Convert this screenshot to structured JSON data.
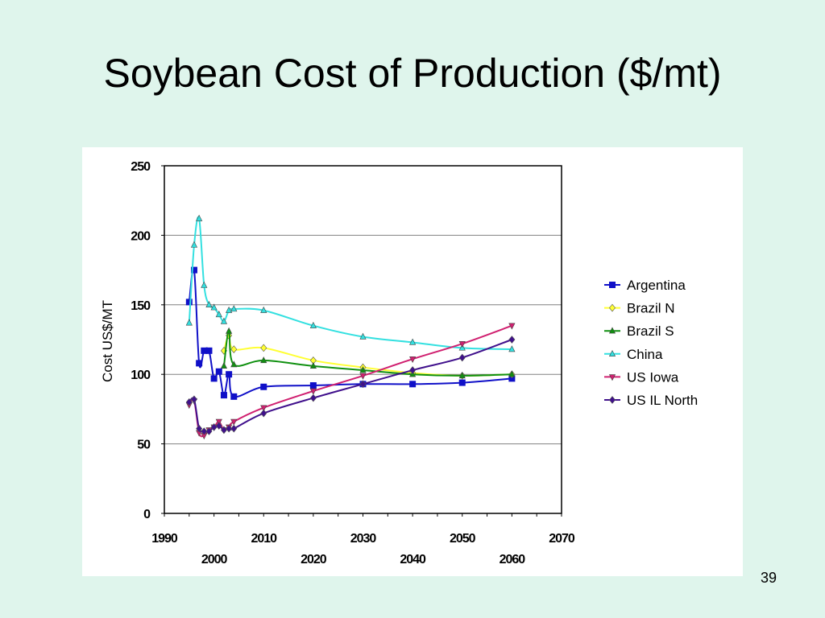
{
  "slide": {
    "title": "Soybean Cost of Production ($/mt)",
    "page_number": "39"
  },
  "chart_data": {
    "type": "line",
    "title": "",
    "xlabel": "",
    "ylabel": "Cost US$/MT",
    "xlim": [
      1990,
      2070
    ],
    "ylim": [
      0,
      250
    ],
    "x_ticks_upper": [
      1990,
      2010,
      2030,
      2050,
      2070
    ],
    "x_ticks_lower": [
      2000,
      2020,
      2040,
      2060
    ],
    "y_ticks": [
      0,
      50,
      100,
      150,
      200,
      250
    ],
    "grid": "horizontal",
    "legend_position": "right",
    "series": [
      {
        "name": "Argentina",
        "color": "#1010c8",
        "marker": "square",
        "x": [
          1995,
          1996,
          1997,
          1998,
          1999,
          2000,
          2001,
          2002,
          2003,
          2004,
          2010,
          2020,
          2030,
          2040,
          2050,
          2060
        ],
        "y": [
          152,
          175,
          108,
          117,
          117,
          97,
          102,
          85,
          100,
          84,
          91,
          92,
          93,
          93,
          94,
          97
        ]
      },
      {
        "name": "Brazil N",
        "color": "#ffff33",
        "marker": "diamond",
        "x": [
          2002,
          2003,
          2004,
          2010,
          2020,
          2030,
          2040,
          2050,
          2060
        ],
        "y": [
          117,
          128,
          118,
          119,
          110,
          105,
          101,
          99,
          100
        ]
      },
      {
        "name": "Brazil S",
        "color": "#109010",
        "marker": "triangle",
        "x": [
          2002,
          2003,
          2004,
          2010,
          2020,
          2030,
          2040,
          2050,
          2060
        ],
        "y": [
          106,
          131,
          107,
          110,
          106,
          103,
          100,
          99,
          100
        ]
      },
      {
        "name": "China",
        "color": "#33e0e0",
        "marker": "triangle",
        "x": [
          1995,
          1996,
          1997,
          1998,
          1999,
          2000,
          2001,
          2002,
          2003,
          2004,
          2010,
          2020,
          2030,
          2040,
          2050,
          2060
        ],
        "y": [
          137,
          193,
          212,
          164,
          150,
          148,
          143,
          138,
          146,
          147,
          146,
          135,
          127,
          123,
          119,
          118
        ]
      },
      {
        "name": "US Iowa",
        "color": "#d02070",
        "marker": "triangle-down",
        "x": [
          1995,
          1996,
          1997,
          1998,
          1999,
          2000,
          2001,
          2002,
          2003,
          2004,
          2010,
          2020,
          2030,
          2040,
          2050,
          2060
        ],
        "y": [
          78,
          81,
          58,
          56,
          60,
          62,
          66,
          60,
          62,
          66,
          76,
          88,
          99,
          111,
          122,
          135
        ]
      },
      {
        "name": "US IL North",
        "color": "#40108c",
        "marker": "diamond",
        "x": [
          1995,
          1996,
          1997,
          1998,
          1999,
          2000,
          2001,
          2002,
          2003,
          2004,
          2010,
          2020,
          2030,
          2040,
          2050,
          2060
        ],
        "y": [
          80,
          82,
          61,
          59,
          59,
          62,
          63,
          60,
          61,
          61,
          72,
          83,
          93,
          103,
          112,
          125
        ]
      }
    ]
  }
}
